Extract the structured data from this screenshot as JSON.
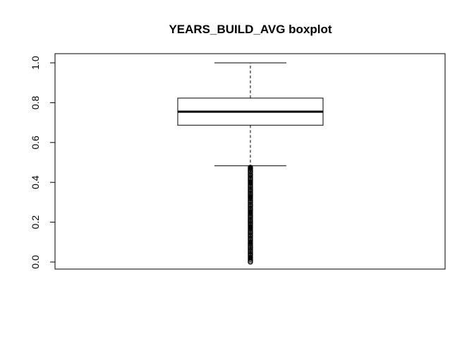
{
  "chart_data": {
    "type": "boxplot",
    "title": "YEARS_BUILD_AVG boxplot",
    "xlabel": "",
    "ylabel": "",
    "ylim": [
      0.0,
      1.0
    ],
    "y_ticks": [
      "0.0",
      "0.2",
      "0.4",
      "0.6",
      "0.8",
      "1.0"
    ],
    "box": {
      "whisker_low": 0.483,
      "q1": 0.687,
      "median": 0.755,
      "q3": 0.823,
      "whisker_high": 1.0
    },
    "outliers": [
      0.0,
      0.006,
      0.013,
      0.019,
      0.025,
      0.032,
      0.038,
      0.044,
      0.051,
      0.057,
      0.063,
      0.07,
      0.076,
      0.082,
      0.089,
      0.095,
      0.101,
      0.108,
      0.114,
      0.12,
      0.127,
      0.133,
      0.139,
      0.146,
      0.152,
      0.158,
      0.165,
      0.171,
      0.177,
      0.184,
      0.19,
      0.196,
      0.203,
      0.209,
      0.215,
      0.222,
      0.228,
      0.234,
      0.241,
      0.247,
      0.253,
      0.26,
      0.266,
      0.272,
      0.279,
      0.285,
      0.291,
      0.298,
      0.304,
      0.31,
      0.317,
      0.323,
      0.329,
      0.336,
      0.342,
      0.348,
      0.355,
      0.361,
      0.367,
      0.374,
      0.38,
      0.386,
      0.393,
      0.399,
      0.405,
      0.412,
      0.418,
      0.424,
      0.431,
      0.437,
      0.443,
      0.45,
      0.456,
      0.462,
      0.469,
      0.475
    ]
  }
}
